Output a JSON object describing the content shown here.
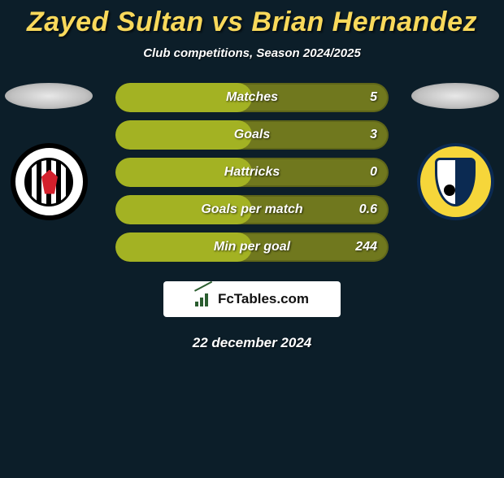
{
  "title": "Zayed Sultan vs Brian Hernandez",
  "subtitle": "Club competitions, Season 2024/2025",
  "date": "22 december 2024",
  "brand": "FcTables.com",
  "colors": {
    "background": "#0c1e29",
    "title": "#f9d95b",
    "bar_bg": "#70781e",
    "bar_fill": "#a3b223"
  },
  "stats": [
    {
      "label": "Matches",
      "value": "5",
      "fill_pct": 50
    },
    {
      "label": "Goals",
      "value": "3",
      "fill_pct": 50
    },
    {
      "label": "Hattricks",
      "value": "0",
      "fill_pct": 50
    },
    {
      "label": "Goals per match",
      "value": "0.6",
      "fill_pct": 50
    },
    {
      "label": "Min per goal",
      "value": "244",
      "fill_pct": 50
    }
  ]
}
